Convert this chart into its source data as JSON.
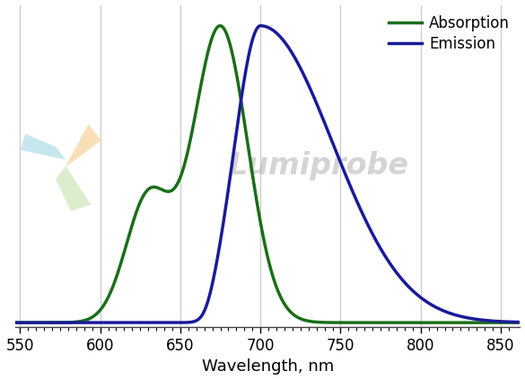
{
  "title": "",
  "xlabel": "Wavelength, nm",
  "ylabel": "",
  "xlim": [
    547,
    862
  ],
  "ylim": [
    -0.015,
    1.07
  ],
  "xticks": [
    550,
    600,
    650,
    700,
    750,
    800,
    850
  ],
  "minor_tick_step": 5,
  "absorption_color": "#1a6e1a",
  "emission_color": "#1a1a99",
  "legend_labels": [
    "Absorption",
    "Emission"
  ],
  "grid_color": "#c8c8c8",
  "background_color": "#ffffff",
  "watermark_text": "Lumiprobe",
  "xlabel_fontsize": 13,
  "legend_fontsize": 12,
  "tick_labelsize": 12,
  "linewidth": 2.5
}
